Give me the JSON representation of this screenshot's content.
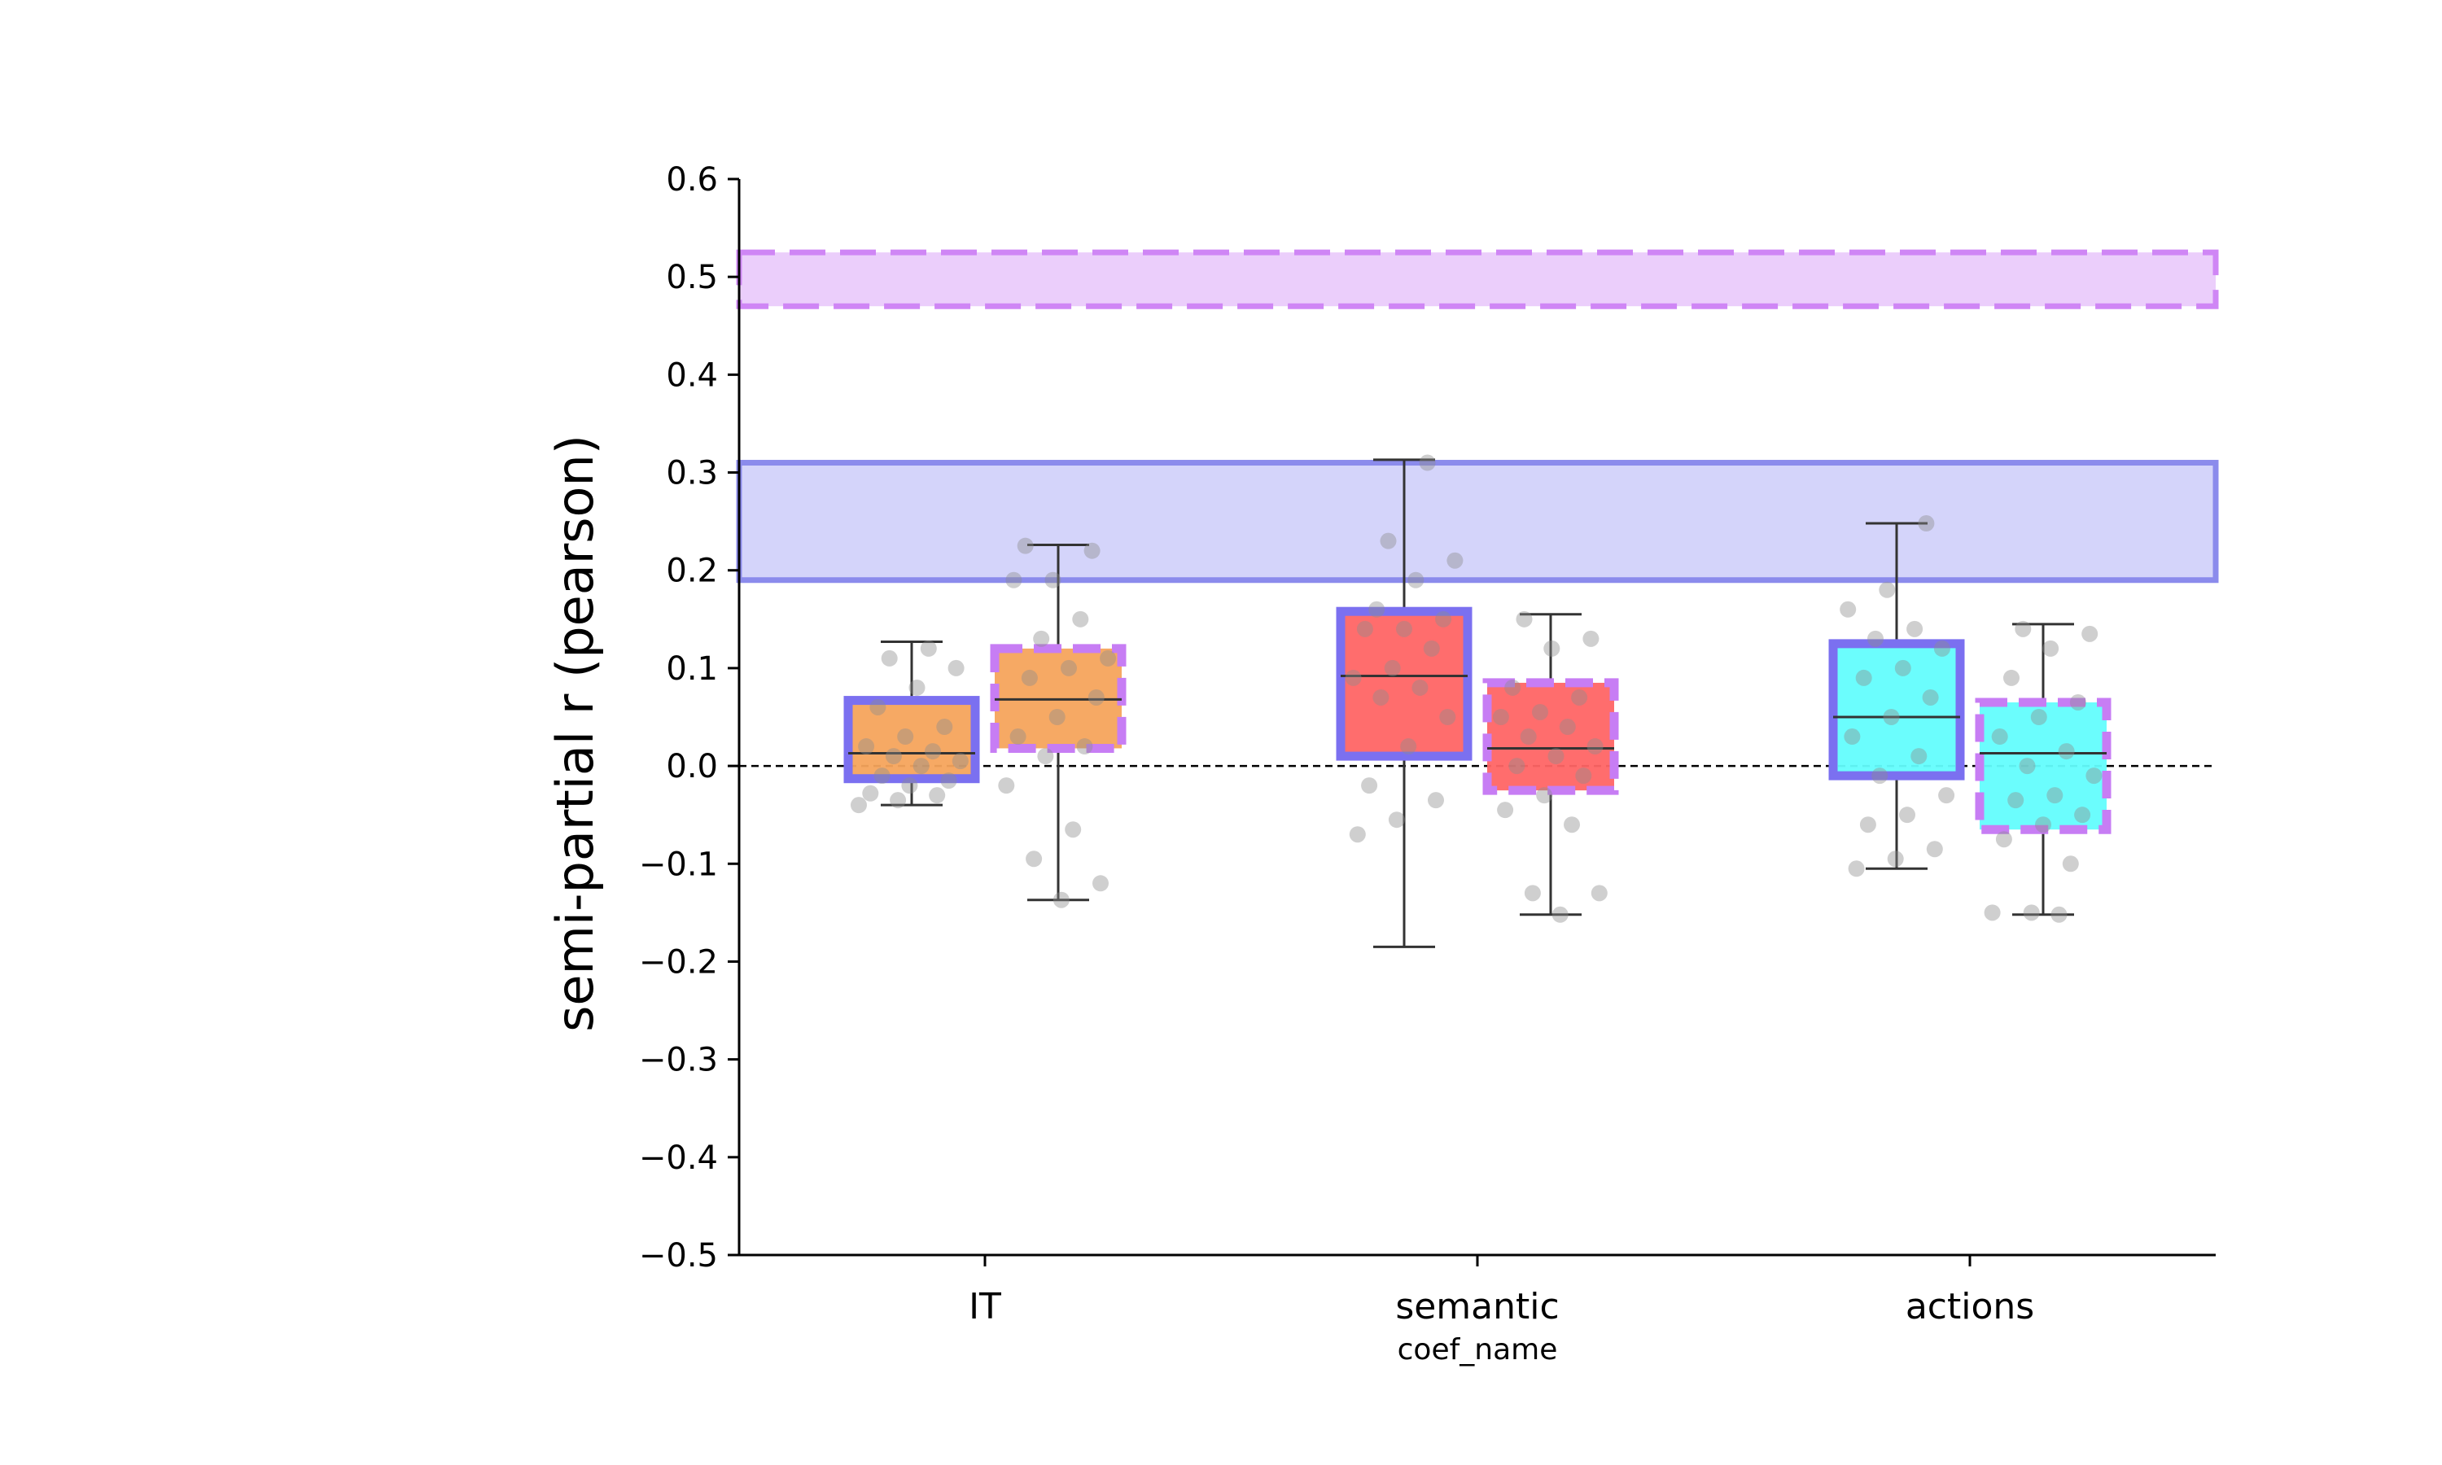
{
  "chart_data": {
    "type": "box",
    "ylabel": "semi-partial r (pearson)",
    "xlabel": "coef_name",
    "ylim": [
      -0.5,
      0.6
    ],
    "yticks": [
      0.6,
      0.5,
      0.4,
      0.3,
      0.2,
      0.1,
      0.0,
      -0.1,
      -0.2,
      -0.3,
      -0.4,
      -0.5
    ],
    "ytick_labels": [
      "0.6",
      "0.5",
      "0.4",
      "0.3",
      "0.2",
      "0.1",
      "0.0",
      "−0.1",
      "−0.2",
      "−0.3",
      "−0.4",
      "−0.5"
    ],
    "categories": [
      "IT",
      "semantic",
      "actions"
    ],
    "reference_line": {
      "y": 0.0,
      "style": "dashed",
      "color": "#000000"
    },
    "bands": [
      {
        "group": "solid",
        "y_low": 0.19,
        "y_high": 0.31,
        "fill": "#b1b1f5",
        "edge": "#8b8bec",
        "style": "solid"
      },
      {
        "group": "dashed",
        "y_low": 0.47,
        "y_high": 0.525,
        "fill": "#dba6f7",
        "edge": "#cf86f5",
        "style": "dashed"
      }
    ],
    "group_styles": {
      "solid": {
        "edge": "#7b70f0",
        "dash": false
      },
      "dashed": {
        "edge": "#c77df4",
        "dash": true
      }
    },
    "category_colors": {
      "IT": "#f6a45c",
      "semantic": "#ff6565",
      "actions": "#63fdfd"
    },
    "boxes": [
      {
        "category": "IT",
        "group": "solid",
        "whisker_low": -0.04,
        "q1": -0.013,
        "median": 0.013,
        "q3": 0.067,
        "whisker_high": 0.127,
        "points": [
          -0.04,
          -0.035,
          -0.03,
          -0.028,
          -0.02,
          -0.015,
          -0.01,
          0.0,
          0.005,
          0.01,
          0.015,
          0.02,
          0.03,
          0.04,
          0.06,
          0.08,
          0.1,
          0.11,
          0.12
        ]
      },
      {
        "category": "IT",
        "group": "dashed",
        "whisker_low": -0.137,
        "q1": 0.018,
        "median": 0.068,
        "q3": 0.12,
        "whisker_high": 0.226,
        "points": [
          -0.137,
          -0.12,
          -0.095,
          -0.065,
          -0.02,
          0.01,
          0.02,
          0.03,
          0.05,
          0.07,
          0.09,
          0.1,
          0.11,
          0.13,
          0.15,
          0.19,
          0.19,
          0.22,
          0.225
        ]
      },
      {
        "category": "semantic",
        "group": "solid",
        "whisker_low": -0.185,
        "q1": 0.01,
        "median": 0.092,
        "q3": 0.158,
        "whisker_high": 0.313,
        "points": [
          -0.07,
          -0.055,
          -0.035,
          -0.02,
          0.02,
          0.05,
          0.07,
          0.08,
          0.09,
          0.1,
          0.12,
          0.14,
          0.14,
          0.15,
          0.16,
          0.19,
          0.21,
          0.23,
          0.31
        ]
      },
      {
        "category": "semantic",
        "group": "dashed",
        "whisker_low": -0.152,
        "q1": -0.025,
        "median": 0.018,
        "q3": 0.085,
        "whisker_high": 0.155,
        "points": [
          -0.152,
          -0.13,
          -0.13,
          -0.06,
          -0.045,
          -0.03,
          -0.01,
          0.0,
          0.01,
          0.02,
          0.03,
          0.04,
          0.05,
          0.055,
          0.07,
          0.08,
          0.12,
          0.13,
          0.15
        ]
      },
      {
        "category": "actions",
        "group": "solid",
        "whisker_low": -0.105,
        "q1": -0.01,
        "median": 0.05,
        "q3": 0.125,
        "whisker_high": 0.248,
        "points": [
          -0.105,
          -0.095,
          -0.085,
          -0.06,
          -0.05,
          -0.03,
          -0.01,
          0.01,
          0.03,
          0.05,
          0.07,
          0.09,
          0.1,
          0.12,
          0.13,
          0.14,
          0.16,
          0.18,
          0.248
        ]
      },
      {
        "category": "actions",
        "group": "dashed",
        "whisker_low": -0.152,
        "q1": -0.065,
        "median": 0.013,
        "q3": 0.065,
        "whisker_high": 0.145,
        "points": [
          -0.152,
          -0.15,
          -0.15,
          -0.1,
          -0.075,
          -0.06,
          -0.05,
          -0.035,
          -0.03,
          -0.01,
          0.0,
          0.015,
          0.03,
          0.05,
          0.065,
          0.09,
          0.12,
          0.135,
          0.14
        ]
      }
    ],
    "grid": false
  }
}
